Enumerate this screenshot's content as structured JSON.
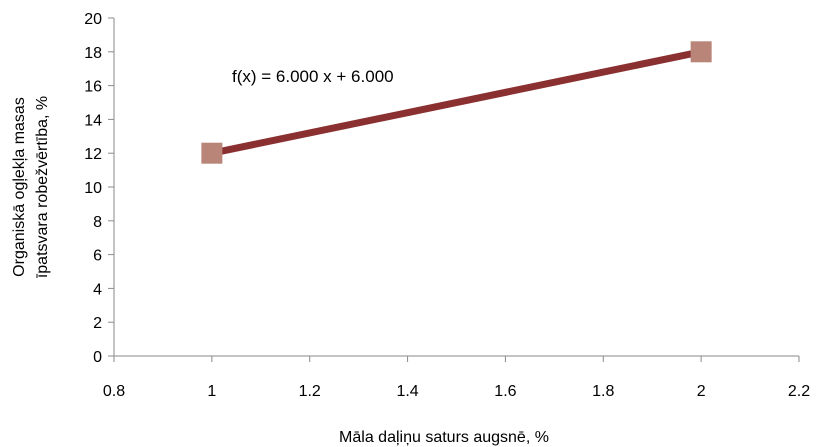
{
  "chart_data": {
    "type": "scatter",
    "title": "",
    "xlabel": "Māla daļiņu saturs augsnē, %",
    "ylabel_lines": [
      "Organiskā ogļekļa masas",
      "īpatsvara robežvērtība, %"
    ],
    "xlim": [
      0.8,
      2.2
    ],
    "ylim": [
      0,
      20
    ],
    "x_ticks": [
      0.8,
      1,
      1.2,
      1.4,
      1.6,
      1.8,
      2,
      2.2
    ],
    "x_tick_labels": [
      "0.8",
      "1",
      "1.2",
      "1.4",
      "1.6",
      "1.8",
      "2",
      "2.2"
    ],
    "y_ticks": [
      0,
      2,
      4,
      6,
      8,
      10,
      12,
      14,
      16,
      18,
      20
    ],
    "y_tick_labels": [
      "0",
      "2",
      "4",
      "6",
      "8",
      "10",
      "12",
      "14",
      "16",
      "18",
      "20"
    ],
    "grid": false,
    "series": [
      {
        "x": [
          1,
          2
        ],
        "y": [
          12,
          18
        ],
        "marker_color": "#b98578",
        "trendline_color": "#8b3030"
      }
    ],
    "trendline": {
      "slope": 6.0,
      "intercept": 6.0
    },
    "annotation": "f(x) = 6.000 x + 6.000"
  }
}
